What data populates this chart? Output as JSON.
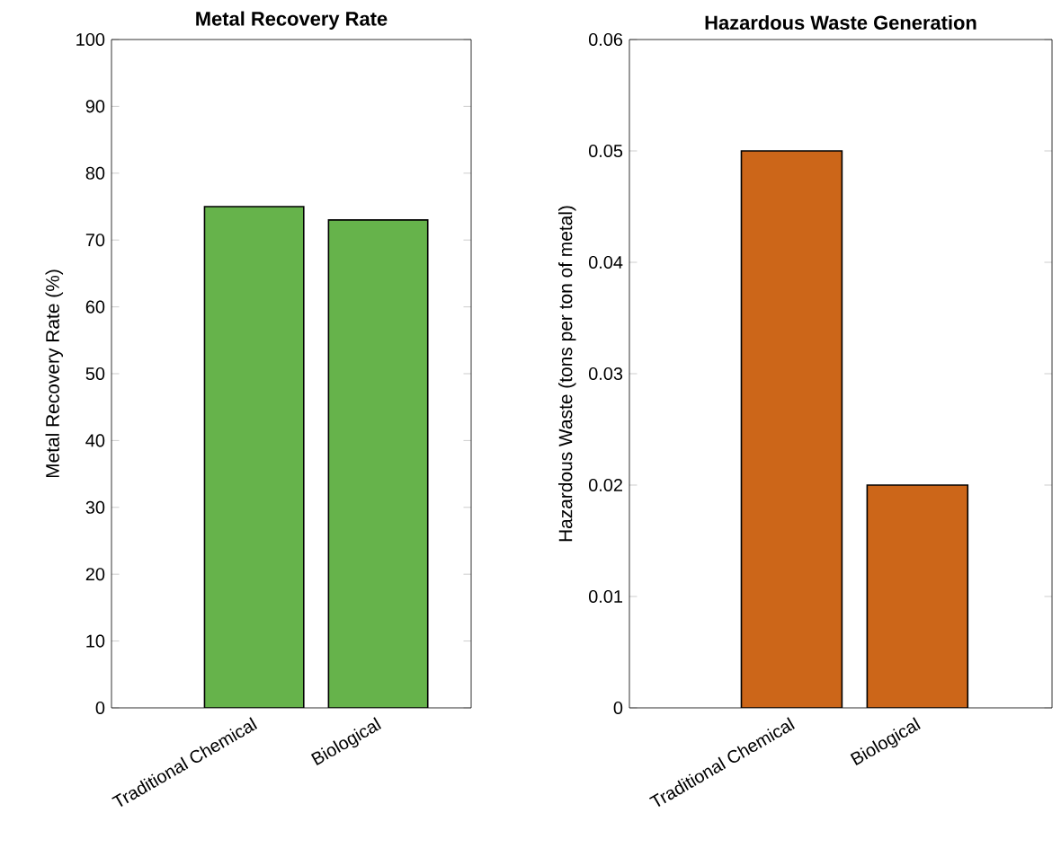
{
  "chart_data": [
    {
      "type": "bar",
      "title": "Metal Recovery Rate",
      "ylabel": "Metal Recovery Rate (%)",
      "categories": [
        "Traditional Chemical",
        "Biological"
      ],
      "values": [
        75,
        73
      ],
      "color": "#66b34b",
      "ylim": [
        0,
        100
      ],
      "yticks": [
        0,
        10,
        20,
        30,
        40,
        50,
        60,
        70,
        80,
        90,
        100
      ],
      "grid": false
    },
    {
      "type": "bar",
      "title": "Hazardous Waste Generation",
      "ylabel": "Hazardous Waste (tons per ton of metal)",
      "categories": [
        "Traditional Chemical",
        "Biological"
      ],
      "values": [
        0.05,
        0.02
      ],
      "color": "#cc6619",
      "ylim": [
        0,
        0.06
      ],
      "yticks": [
        0,
        0.01,
        0.02,
        0.03,
        0.04,
        0.05,
        0.06
      ],
      "grid": false
    }
  ]
}
